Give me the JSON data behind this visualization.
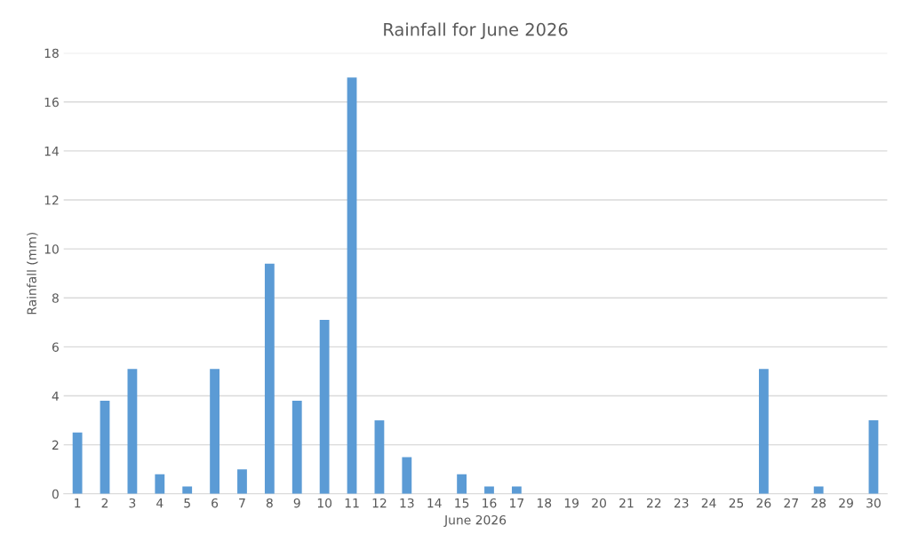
{
  "chart_data": {
    "type": "bar",
    "title": "Rainfall for June 2026",
    "xlabel": "June 2026",
    "ylabel": "Rainfall (mm)",
    "categories": [
      "1",
      "2",
      "3",
      "4",
      "5",
      "6",
      "7",
      "8",
      "9",
      "10",
      "11",
      "12",
      "13",
      "14",
      "15",
      "16",
      "17",
      "18",
      "19",
      "20",
      "21",
      "22",
      "23",
      "24",
      "25",
      "26",
      "27",
      "28",
      "29",
      "30"
    ],
    "values": [
      2.5,
      3.8,
      5.1,
      0.8,
      0.3,
      5.1,
      1.0,
      9.4,
      3.8,
      7.1,
      17.0,
      3.0,
      1.5,
      0,
      0.8,
      0.3,
      0.3,
      0,
      0,
      0,
      0,
      0,
      0,
      0,
      0,
      5.1,
      0,
      0.3,
      0,
      3.0
    ],
    "color": "#5b9bd5",
    "ylim": [
      0,
      18
    ],
    "yticks": [
      0,
      2,
      4,
      6,
      8,
      10,
      12,
      14,
      16,
      18
    ],
    "grid": "y"
  }
}
